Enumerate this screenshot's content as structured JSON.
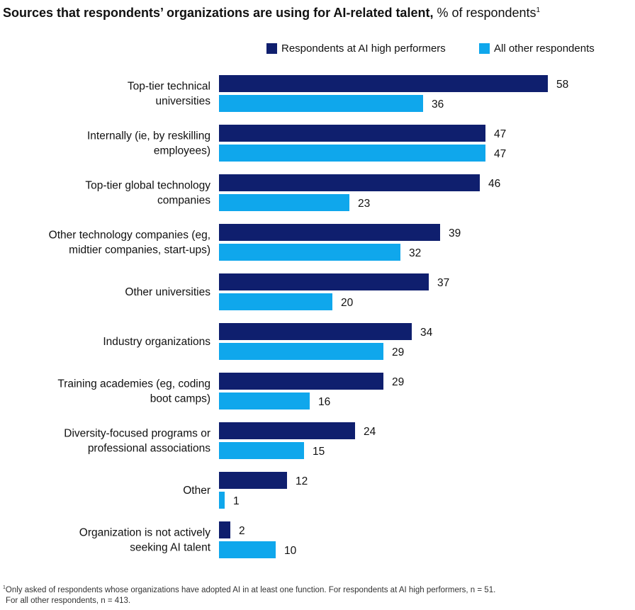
{
  "title": {
    "bold": "Sources that respondents’ organizations are using for AI-related talent,",
    "normal": " % of respondents",
    "sup": "1"
  },
  "colors": {
    "high": "#0f1f6e",
    "other": "#0fa7ec"
  },
  "footnote": {
    "marker": "1",
    "line1": "Only asked of respondents whose organizations have adopted AI in at least one function. For respondents at AI high performers, n = 51.",
    "line2": "For all other respondents, n = 413."
  },
  "chart_data": {
    "type": "bar",
    "orientation": "horizontal",
    "categories": [
      [
        "Top-tier technical",
        "universities"
      ],
      [
        "Internally (ie, by reskilling",
        "employees)"
      ],
      [
        "Top-tier global technology",
        "companies"
      ],
      [
        "Other technology companies (eg,",
        "midtier companies, start-ups)"
      ],
      [
        "Other universities"
      ],
      [
        "Industry organizations"
      ],
      [
        "Training academies (eg, coding",
        "boot camps)"
      ],
      [
        "Diversity-focused programs or",
        "professional associations"
      ],
      [
        "Other"
      ],
      [
        "Organization is not actively",
        "seeking AI talent"
      ]
    ],
    "series": [
      {
        "name": "Respondents at AI high performers",
        "values": [
          58,
          47,
          46,
          39,
          37,
          34,
          29,
          24,
          12,
          2
        ]
      },
      {
        "name": "All other respondents",
        "values": [
          36,
          47,
          23,
          32,
          20,
          29,
          16,
          15,
          1,
          10
        ]
      }
    ],
    "legend": "top-right",
    "grid": false
  }
}
